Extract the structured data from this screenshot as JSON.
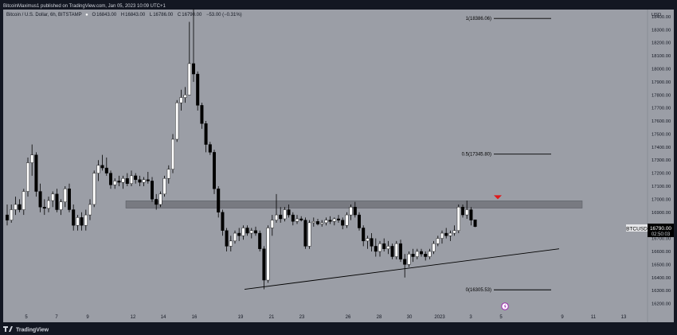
{
  "header": {
    "publisher_line": "BitcoinMaximus1 published on TradingView.com, Jan 05, 2023 10:09 UTC+1",
    "symbol_line": "Bitcoin / U.S. Dollar, 6h, BITSTAMP",
    "o_label": "O",
    "o_value": "16843.00",
    "h_label": "H",
    "h_value": "16843.00",
    "l_label": "L",
    "l_value": "16786.00",
    "c_label": "C",
    "c_value": "16790.00",
    "change": "−53.00 (−0.31%)"
  },
  "footer": {
    "brand": "TradingView"
  },
  "price_tag": {
    "symbol": "BTCUSD",
    "price": "16790.00",
    "countdown": "02:50:03"
  },
  "colors": {
    "background": "#9b9ea6",
    "up": "#ffffff",
    "down": "#000000",
    "zone": "#6f7178",
    "arrow": "#e0191b",
    "frame": "#131722"
  },
  "chart_data": {
    "type": "candlestick",
    "currency": "USD",
    "ylim": [
      16110,
      18540
    ],
    "y_ticks": [
      "18400.00",
      "18300.00",
      "18200.00",
      "18100.00",
      "18000.00",
      "17900.00",
      "17800.00",
      "17700.00",
      "17600.00",
      "17500.00",
      "17400.00",
      "17300.00",
      "17200.00",
      "17100.00",
      "17000.00",
      "16900.00",
      "16800.00",
      "16700.00",
      "16600.00",
      "16500.00",
      "16400.00",
      "16300.00",
      "16200.00"
    ],
    "x_ticks": [
      "5",
      "7",
      "9",
      "12",
      "14",
      "16",
      "19",
      "21",
      "23",
      "26",
      "28",
      "30",
      "2023",
      "3",
      "5",
      "9",
      "11",
      "13"
    ],
    "fibonacci": [
      {
        "label": "1(18386.06)",
        "price": 18386.06
      },
      {
        "label": "0.5(17345.80)",
        "price": 17345.8
      },
      {
        "label": "0(16305.53)",
        "price": 16305.53
      }
    ],
    "resistance_zone": [
      16932,
      16988
    ],
    "support_line": {
      "from": 16310,
      "to": 16620
    },
    "candles": [
      [
        16880,
        16960,
        16800,
        16840
      ],
      [
        16840,
        16960,
        16820,
        16920
      ],
      [
        16920,
        17020,
        16880,
        16960
      ],
      [
        16960,
        17000,
        16900,
        16920
      ],
      [
        16920,
        17080,
        16880,
        17060
      ],
      [
        17060,
        17320,
        17020,
        17280
      ],
      [
        17280,
        17420,
        17180,
        17340
      ],
      [
        17340,
        17360,
        17020,
        17060
      ],
      [
        17060,
        17120,
        16900,
        16940
      ],
      [
        16940,
        17000,
        16880,
        16930
      ],
      [
        16930,
        17020,
        16900,
        16990
      ],
      [
        16990,
        17060,
        16940,
        17040
      ],
      [
        17040,
        17080,
        16900,
        16920
      ],
      [
        16920,
        17000,
        16880,
        16980
      ],
      [
        16980,
        17100,
        16940,
        17080
      ],
      [
        17080,
        17120,
        16900,
        16920
      ],
      [
        16920,
        16960,
        16760,
        16800
      ],
      [
        16800,
        16880,
        16760,
        16860
      ],
      [
        16860,
        16900,
        16760,
        16800
      ],
      [
        16800,
        16920,
        16760,
        16880
      ],
      [
        16880,
        17000,
        16840,
        16960
      ],
      [
        16960,
        17220,
        16940,
        17200
      ],
      [
        17200,
        17300,
        17140,
        17260
      ],
      [
        17260,
        17340,
        17220,
        17240
      ],
      [
        17240,
        17320,
        17180,
        17200
      ],
      [
        17200,
        17220,
        17080,
        17110
      ],
      [
        17110,
        17160,
        17080,
        17140
      ],
      [
        17140,
        17180,
        17100,
        17130
      ],
      [
        17130,
        17180,
        17080,
        17160
      ],
      [
        17160,
        17200,
        17100,
        17120
      ],
      [
        17120,
        17220,
        17100,
        17180
      ],
      [
        17180,
        17200,
        17120,
        17150
      ],
      [
        17150,
        17180,
        17100,
        17130
      ],
      [
        17130,
        17170,
        17100,
        17150
      ],
      [
        17150,
        17210,
        17120,
        17140
      ],
      [
        17140,
        17170,
        16980,
        17000
      ],
      [
        17000,
        17040,
        16920,
        16960
      ],
      [
        16960,
        17060,
        16940,
        17040
      ],
      [
        17040,
        17180,
        17020,
        17160
      ],
      [
        17160,
        17260,
        17120,
        17230
      ],
      [
        17230,
        17500,
        17200,
        17460
      ],
      [
        17460,
        17760,
        17440,
        17740
      ],
      [
        17740,
        17840,
        17680,
        17780
      ],
      [
        17780,
        17860,
        17740,
        17800
      ],
      [
        17800,
        18360,
        17800,
        18040
      ],
      [
        18040,
        18460,
        17900,
        17960
      ],
      [
        17960,
        17980,
        17680,
        17720
      ],
      [
        17720,
        17740,
        17540,
        17580
      ],
      [
        17580,
        17600,
        17360,
        17420
      ],
      [
        17420,
        17440,
        17340,
        17360
      ],
      [
        17360,
        17380,
        17040,
        17080
      ],
      [
        17080,
        17100,
        16860,
        16900
      ],
      [
        16900,
        16920,
        16720,
        16760
      ],
      [
        16760,
        16780,
        16600,
        16640
      ],
      [
        16640,
        16720,
        16600,
        16680
      ],
      [
        16680,
        16760,
        16660,
        16740
      ],
      [
        16740,
        16780,
        16680,
        16720
      ],
      [
        16720,
        16800,
        16690,
        16780
      ],
      [
        16780,
        16800,
        16720,
        16740
      ],
      [
        16740,
        16780,
        16700,
        16760
      ],
      [
        16760,
        16790,
        16720,
        16740
      ],
      [
        16740,
        16760,
        16600,
        16620
      ],
      [
        16620,
        16640,
        16310,
        16380
      ],
      [
        16380,
        16800,
        16360,
        16780
      ],
      [
        16780,
        16880,
        16720,
        16840
      ],
      [
        16840,
        17040,
        16820,
        16880
      ],
      [
        16880,
        16940,
        16820,
        16850
      ],
      [
        16850,
        16940,
        16830,
        16920
      ],
      [
        16920,
        16960,
        16860,
        16880
      ],
      [
        16880,
        16900,
        16800,
        16830
      ],
      [
        16830,
        16880,
        16810,
        16850
      ],
      [
        16850,
        16870,
        16830,
        16840
      ],
      [
        16840,
        16860,
        16620,
        16640
      ],
      [
        16640,
        16840,
        16620,
        16820
      ],
      [
        16820,
        16860,
        16790,
        16830
      ],
      [
        16830,
        16850,
        16800,
        16810
      ],
      [
        16810,
        16840,
        16790,
        16820
      ],
      [
        16820,
        16860,
        16800,
        16840
      ],
      [
        16840,
        16870,
        16810,
        16830
      ],
      [
        16830,
        16860,
        16800,
        16850
      ],
      [
        16850,
        16880,
        16820,
        16840
      ],
      [
        16840,
        16860,
        16770,
        16800
      ],
      [
        16800,
        16900,
        16780,
        16880
      ],
      [
        16880,
        16960,
        16840,
        16940
      ],
      [
        16940,
        16980,
        16860,
        16880
      ],
      [
        16880,
        16900,
        16760,
        16780
      ],
      [
        16780,
        16800,
        16640,
        16680
      ],
      [
        16680,
        16720,
        16620,
        16700
      ],
      [
        16700,
        16740,
        16600,
        16640
      ],
      [
        16640,
        16700,
        16560,
        16600
      ],
      [
        16600,
        16680,
        16560,
        16660
      ],
      [
        16660,
        16700,
        16600,
        16620
      ],
      [
        16620,
        16680,
        16580,
        16640
      ],
      [
        16640,
        16660,
        16540,
        16560
      ],
      [
        16560,
        16680,
        16540,
        16660
      ],
      [
        16660,
        16690,
        16520,
        16540
      ],
      [
        16540,
        16580,
        16400,
        16500
      ],
      [
        16500,
        16600,
        16480,
        16580
      ],
      [
        16580,
        16620,
        16520,
        16560
      ],
      [
        16560,
        16620,
        16540,
        16600
      ],
      [
        16600,
        16620,
        16560,
        16580
      ],
      [
        16580,
        16600,
        16530,
        16560
      ],
      [
        16560,
        16620,
        16540,
        16600
      ],
      [
        16600,
        16680,
        16580,
        16660
      ],
      [
        16660,
        16720,
        16640,
        16700
      ],
      [
        16700,
        16760,
        16660,
        16740
      ],
      [
        16740,
        16780,
        16700,
        16720
      ],
      [
        16720,
        16760,
        16680,
        16740
      ],
      [
        16740,
        16800,
        16720,
        16760
      ],
      [
        16760,
        16960,
        16740,
        16940
      ],
      [
        16940,
        16960,
        16860,
        16880
      ],
      [
        16880,
        16990,
        16850,
        16920
      ],
      [
        16920,
        16940,
        16800,
        16840
      ],
      [
        16843,
        16843,
        16786,
        16790
      ]
    ]
  }
}
